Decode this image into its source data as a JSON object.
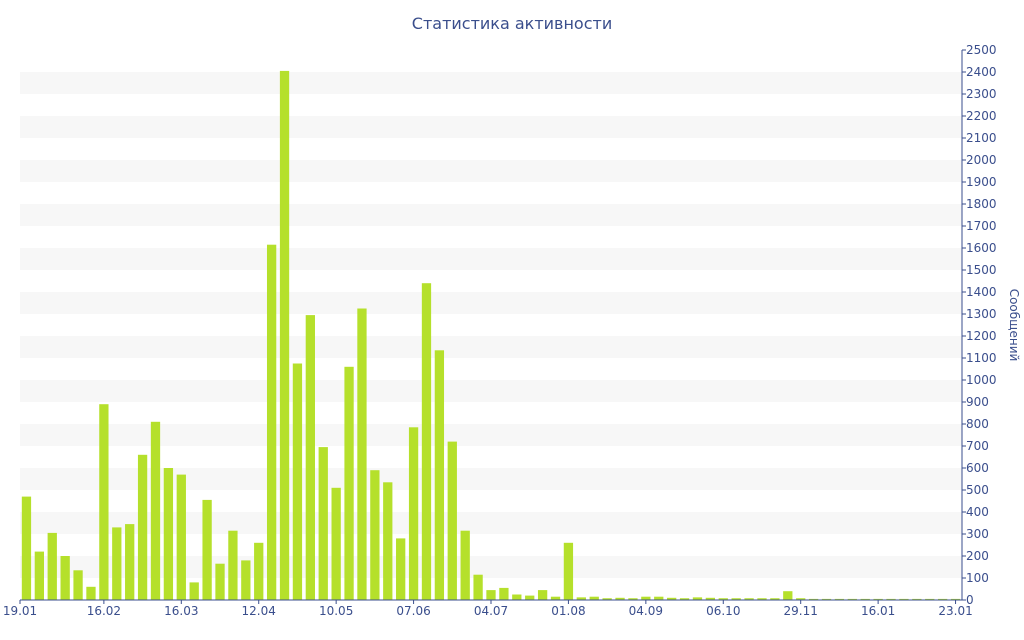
{
  "colors": {
    "bar": "#b5e02b",
    "stripe": "#f7f7f7",
    "axis": "#3a4e8c",
    "text": "#3a4e8c"
  },
  "chart_data": {
    "type": "bar",
    "title": "Статистика активности",
    "xlabel": "",
    "ylabel": "Сообщений",
    "ylim": [
      0,
      2500
    ],
    "ytick_step": 100,
    "grid": "horizontal alternating bands",
    "x_tick_labels": [
      "19.01",
      "16.02",
      "16.03",
      "12.04",
      "10.05",
      "07.06",
      "04.07",
      "01.08",
      "04.09",
      "06.10",
      "29.11",
      "16.01",
      "23.01"
    ],
    "x_tick_bar_index": [
      0,
      6,
      12,
      18,
      24,
      30,
      36,
      42,
      48,
      54,
      60,
      66,
      72
    ],
    "values": [
      470,
      220,
      305,
      200,
      135,
      60,
      890,
      330,
      345,
      660,
      810,
      600,
      570,
      80,
      455,
      165,
      315,
      180,
      260,
      1615,
      2405,
      1075,
      1295,
      695,
      510,
      1060,
      1325,
      590,
      535,
      280,
      785,
      1440,
      1135,
      720,
      315,
      115,
      45,
      55,
      25,
      20,
      45,
      15,
      260,
      12,
      15,
      8,
      10,
      8,
      15,
      15,
      10,
      8,
      12,
      10,
      8,
      8,
      8,
      8,
      8,
      40,
      8,
      5,
      5,
      5,
      5,
      5,
      5,
      5,
      5,
      5,
      5,
      5,
      5
    ]
  }
}
